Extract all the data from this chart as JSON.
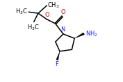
{
  "bg_color": "#ffffff",
  "line_color": "#000000",
  "N_color": "#1a1aff",
  "O_color": "#cc0000",
  "F_color": "#1a1aff",
  "NH2_color": "#1a1aff",
  "figsize": [
    1.77,
    1.18
  ],
  "dpi": 100,
  "lw": 1.1,
  "fs": 6.0,
  "xlim": [
    -1.0,
    9.0
  ],
  "ylim": [
    -1.5,
    7.5
  ]
}
